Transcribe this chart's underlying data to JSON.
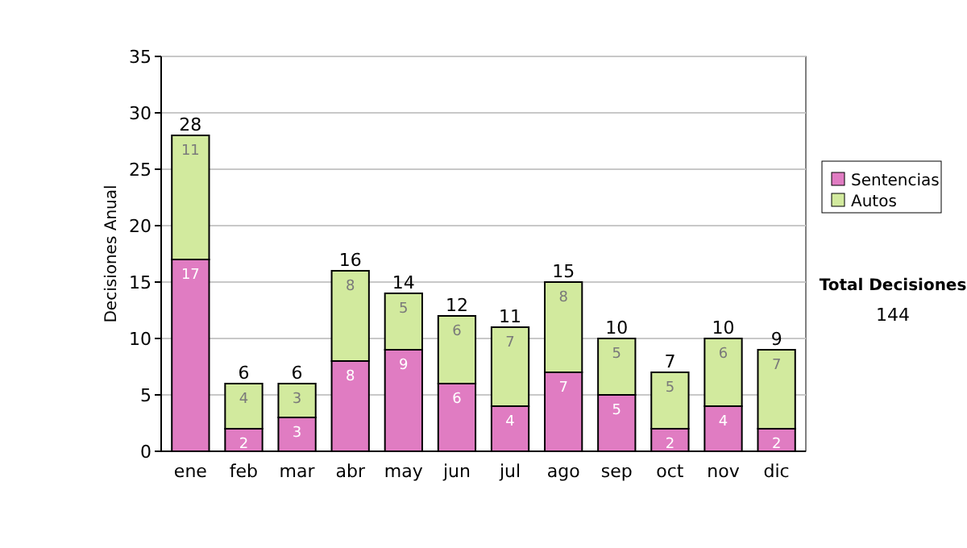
{
  "chart_data": {
    "type": "bar",
    "stacked": true,
    "ylabel": "Decisiones Anual",
    "categories": [
      "ene",
      "feb",
      "mar",
      "abr",
      "may",
      "jun",
      "jul",
      "ago",
      "sep",
      "oct",
      "nov",
      "dic"
    ],
    "series": [
      {
        "name": "Sentencias",
        "color": "#e07cc2",
        "values": [
          17,
          2,
          3,
          8,
          9,
          6,
          4,
          7,
          5,
          2,
          4,
          2
        ]
      },
      {
        "name": "Autos",
        "color": "#d2ea9e",
        "values": [
          11,
          4,
          3,
          8,
          5,
          6,
          7,
          8,
          5,
          5,
          6,
          7
        ]
      }
    ],
    "ylim": [
      0,
      35
    ],
    "yticks": [
      0,
      5,
      10,
      15,
      20,
      25,
      30,
      35
    ],
    "grid": "y",
    "legend": "right",
    "data_labels": true,
    "totals": [
      "28",
      "6",
      "6",
      "16",
      "14",
      "12",
      "11",
      "15",
      "10",
      "7",
      "10",
      "9"
    ],
    "annotations": [
      "Total Decisiones",
      "144"
    ]
  }
}
